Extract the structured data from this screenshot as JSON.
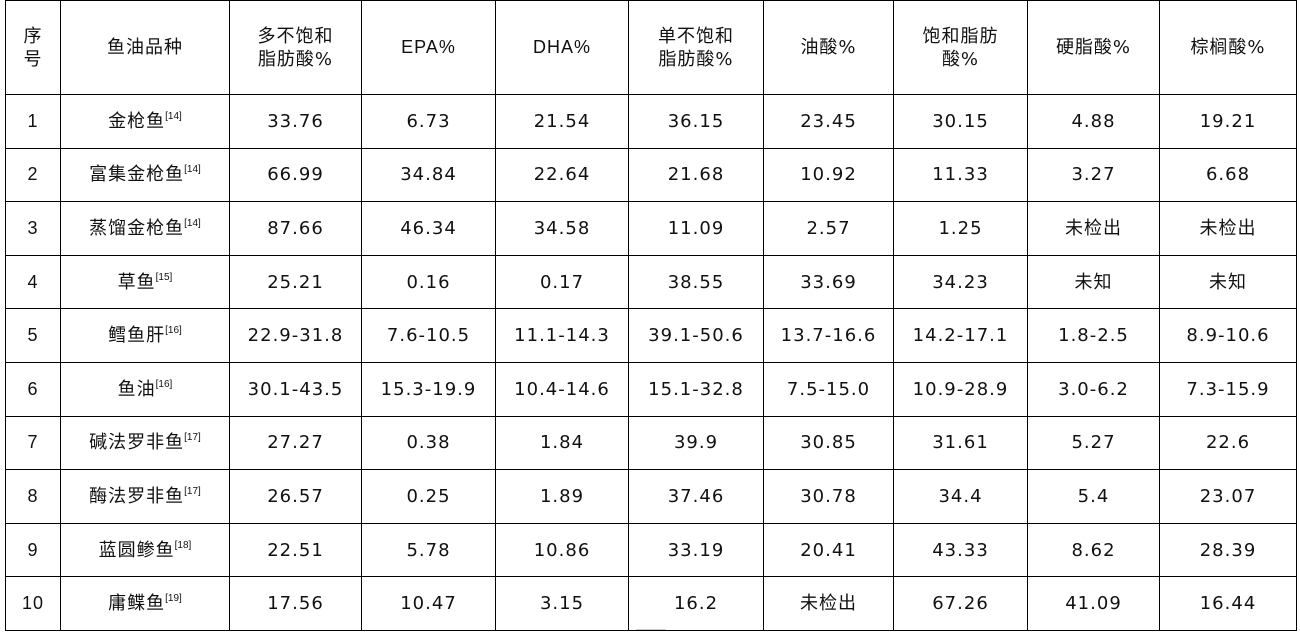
{
  "headers": {
    "seq": [
      "序",
      "号"
    ],
    "variety": "鱼油品种",
    "pufa": [
      "多不饱和",
      "脂肪酸%"
    ],
    "epa": "EPA%",
    "dha": "DHA%",
    "mufa": [
      "单不饱和",
      "脂肪酸%"
    ],
    "oleic": "油酸%",
    "sfa": [
      "饱和脂肪",
      "酸%"
    ],
    "stearic": "硬脂酸%",
    "palmitic": "棕榈酸%"
  },
  "rows": [
    {
      "seq": "1",
      "name": "金枪鱼",
      "cite": "[14]",
      "pufa": "33.76",
      "epa": "6.73",
      "dha": "21.54",
      "mufa": "36.15",
      "oleic": "23.45",
      "sfa": "30.15",
      "stearic": "4.88",
      "palmitic": "19.21"
    },
    {
      "seq": "2",
      "name": "富集金枪鱼",
      "cite": "[14]",
      "pufa": "66.99",
      "epa": "34.84",
      "dha": "22.64",
      "mufa": "21.68",
      "oleic": "10.92",
      "sfa": "11.33",
      "stearic": "3.27",
      "palmitic": "6.68"
    },
    {
      "seq": "3",
      "name": "蒸馏金枪鱼",
      "cite": "[14]",
      "pufa": "87.66",
      "epa": "46.34",
      "dha": "34.58",
      "mufa": "11.09",
      "oleic": "2.57",
      "sfa": "1.25",
      "stearic": "未检出",
      "palmitic": "未检出"
    },
    {
      "seq": "4",
      "name": "草鱼",
      "cite": "[15]",
      "pufa": "25.21",
      "epa": "0.16",
      "dha": "0.17",
      "mufa": "38.55",
      "oleic": "33.69",
      "sfa": "34.23",
      "stearic": "未知",
      "palmitic": "未知"
    },
    {
      "seq": "5",
      "name": "鳕鱼肝",
      "cite": "[16]",
      "pufa": "22.9-31.8",
      "epa": "7.6-10.5",
      "dha": "11.1-14.3",
      "mufa": "39.1-50.6",
      "oleic": "13.7-16.6",
      "sfa": "14.2-17.1",
      "stearic": "1.8-2.5",
      "palmitic": "8.9-10.6"
    },
    {
      "seq": "6",
      "name": "鱼油",
      "cite": "[16]",
      "pufa": "30.1-43.5",
      "epa": "15.3-19.9",
      "dha": "10.4-14.6",
      "mufa": "15.1-32.8",
      "oleic": "7.5-15.0",
      "sfa": "10.9-28.9",
      "stearic": "3.0-6.2",
      "palmitic": "7.3-15.9"
    },
    {
      "seq": "7",
      "name": "碱法罗非鱼",
      "cite": "[17]",
      "pufa": "27.27",
      "epa": "0.38",
      "dha": "1.84",
      "mufa": "39.9",
      "oleic": "30.85",
      "sfa": "31.61",
      "stearic": "5.27",
      "palmitic": "22.6"
    },
    {
      "seq": "8",
      "name": "酶法罗非鱼",
      "cite": "[17]",
      "pufa": "26.57",
      "epa": "0.25",
      "dha": "1.89",
      "mufa": "37.46",
      "oleic": "30.78",
      "sfa": "34.4",
      "stearic": "5.4",
      "palmitic": "23.07"
    },
    {
      "seq": "9",
      "name": "蓝圆鲹鱼",
      "cite": "[18]",
      "pufa": "22.51",
      "epa": "5.78",
      "dha": "10.86",
      "mufa": "33.19",
      "oleic": "20.41",
      "sfa": "43.33",
      "stearic": "8.62",
      "palmitic": "28.39"
    },
    {
      "seq": "10",
      "name": "庸鲽鱼",
      "cite": "[19]",
      "pufa": "17.56",
      "epa": "10.47",
      "dha": "3.15",
      "mufa": "16.2",
      "oleic": "未检出",
      "sfa": "67.26",
      "stearic": "41.09",
      "palmitic": "16.44"
    }
  ]
}
